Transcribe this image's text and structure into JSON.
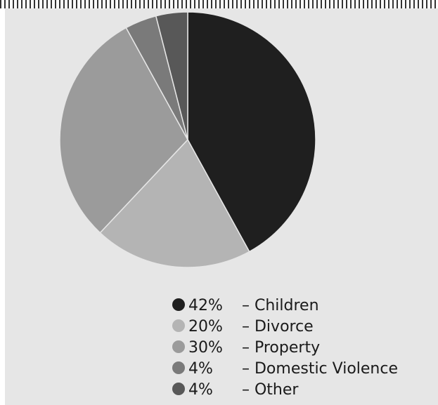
{
  "chart_data": {
    "type": "pie",
    "title": "",
    "slices": [
      {
        "label": "Children",
        "percent_label": "42%",
        "value": 42,
        "color": "#1f1f1f"
      },
      {
        "label": "Divorce",
        "percent_label": "20%",
        "value": 20,
        "color": "#b4b4b4"
      },
      {
        "label": "Property",
        "percent_label": "30%",
        "value": 30,
        "color": "#9b9b9b"
      },
      {
        "label": "Domestic Violence",
        "percent_label": "4%",
        "value": 4,
        "color": "#7a7a7a"
      },
      {
        "label": "Other",
        "percent_label": "4%",
        "value": 4,
        "color": "#585858"
      }
    ],
    "start_angle_deg": 0,
    "direction": "clockwise",
    "legend_placement": "bottom",
    "legend_separator": "–"
  }
}
